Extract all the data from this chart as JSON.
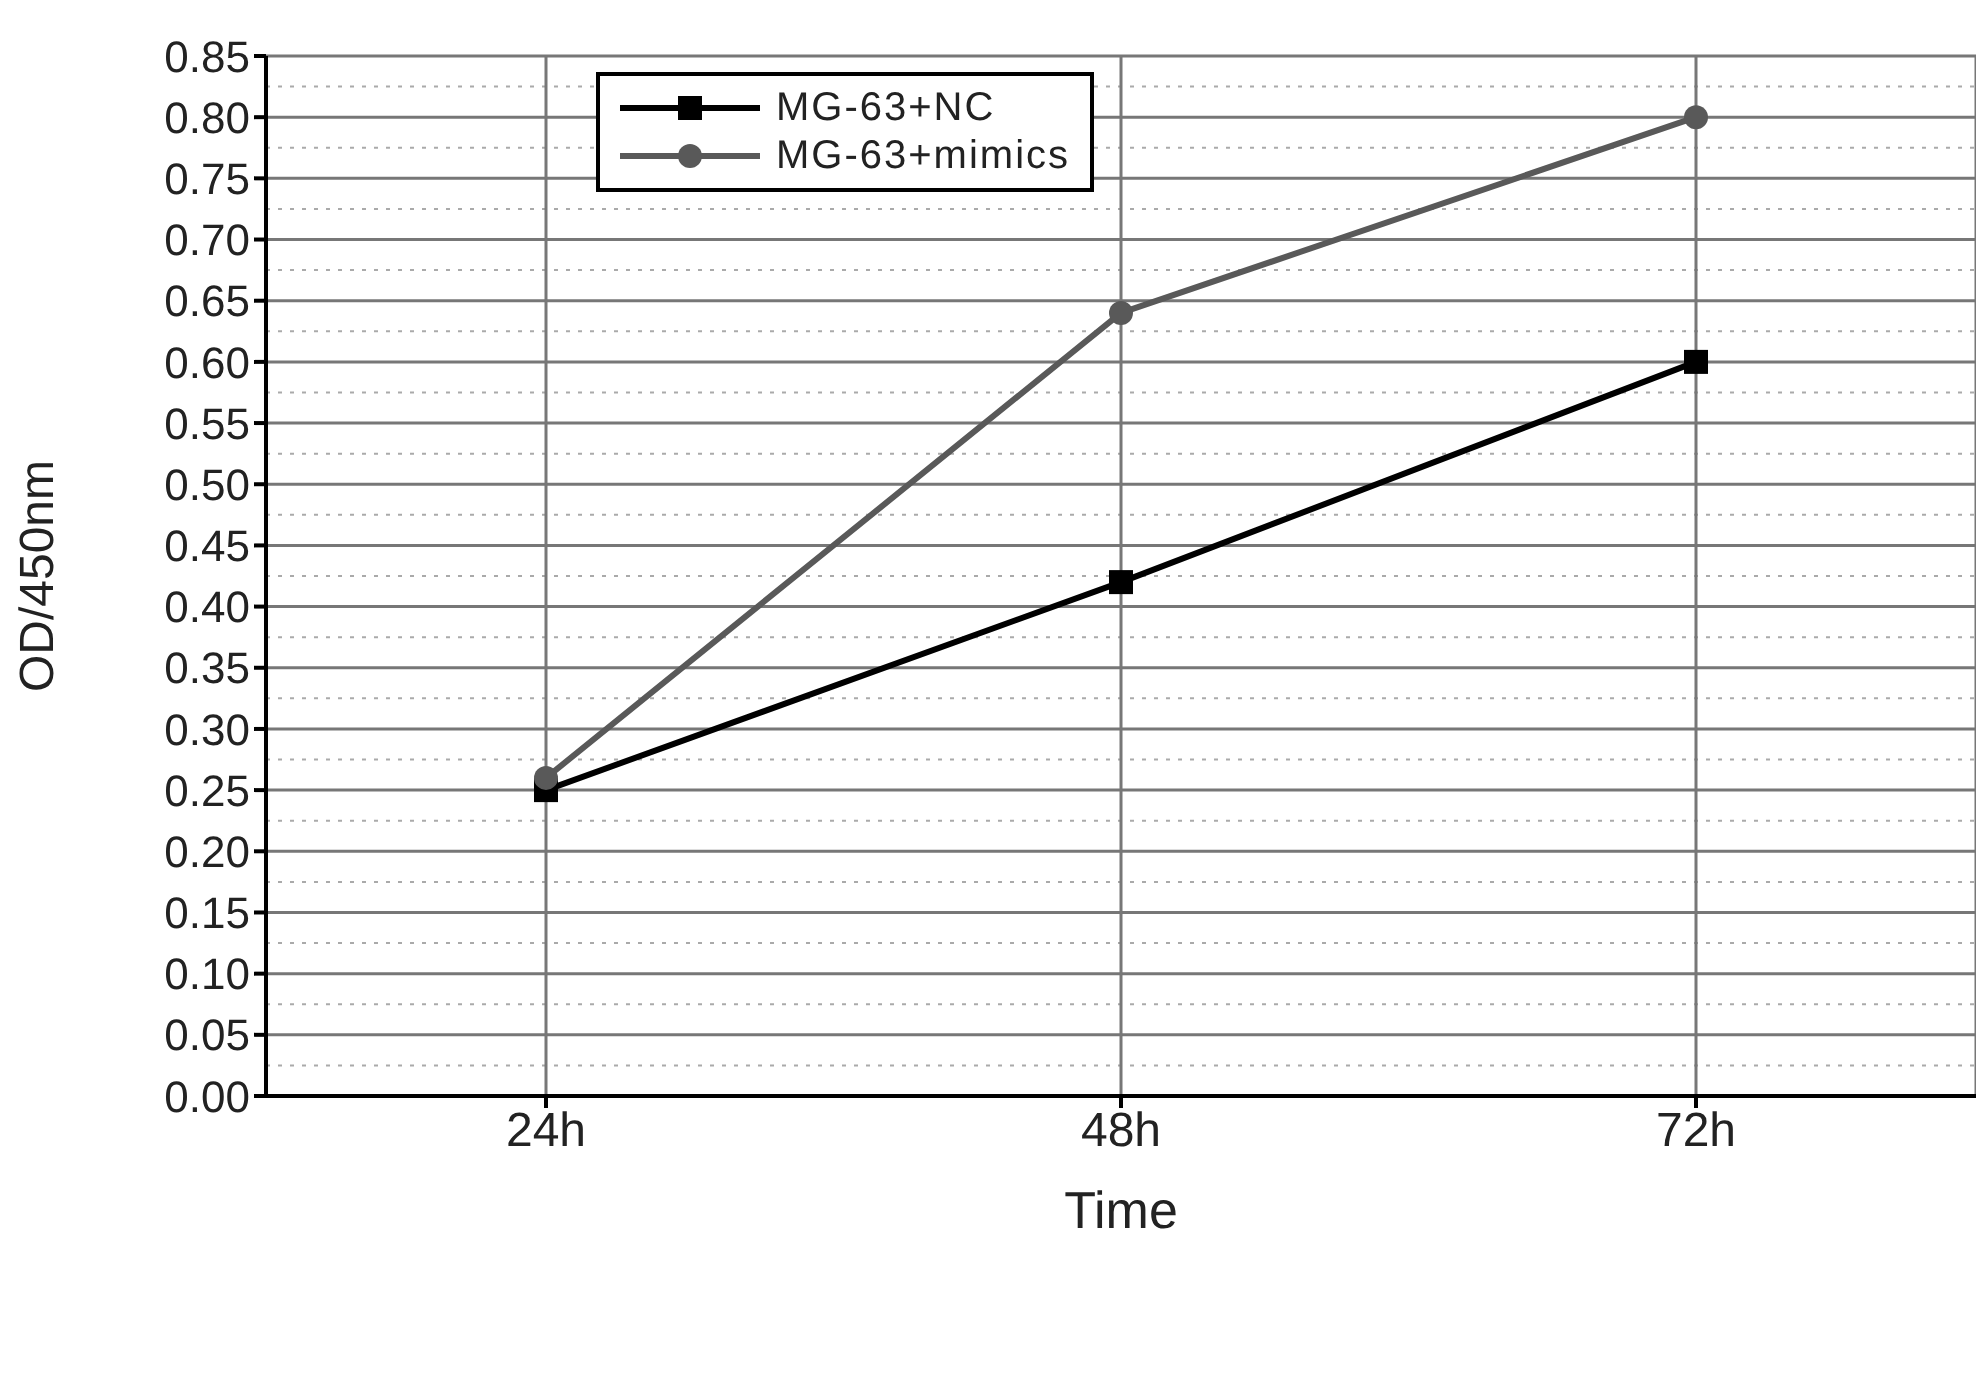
{
  "chart_data": {
    "type": "line",
    "xlabel": "Time",
    "ylabel": "OD/450nm",
    "categories": [
      "24h",
      "48h",
      "72h"
    ],
    "series": [
      {
        "name": "MG-63+NC",
        "color": "#000000",
        "marker": "square",
        "values": [
          0.25,
          0.42,
          0.6
        ]
      },
      {
        "name": "MG-63+mimics",
        "color": "#595959",
        "marker": "circle",
        "values": [
          0.26,
          0.64,
          0.8
        ]
      }
    ],
    "ylim": [
      0,
      0.85
    ],
    "yticks": [
      {
        "value": 0,
        "label": "0.00"
      },
      0.05,
      {
        "value": 0.1,
        "label": "0.10"
      },
      0.15,
      {
        "value": 0.2,
        "label": "0.20"
      },
      0.25,
      {
        "value": 0.3,
        "label": "0.30"
      },
      0.35,
      {
        "value": 0.4,
        "label": "0.40"
      },
      0.45,
      {
        "value": 0.5,
        "label": "0.50"
      },
      0.55,
      {
        "value": 0.6,
        "label": "0.60"
      },
      0.65,
      {
        "value": 0.7,
        "label": "0.70"
      },
      0.75,
      {
        "value": 0.8,
        "label": "0.80"
      },
      0.85
    ],
    "grid": true,
    "legend": "top left",
    "line_style": "solid"
  }
}
